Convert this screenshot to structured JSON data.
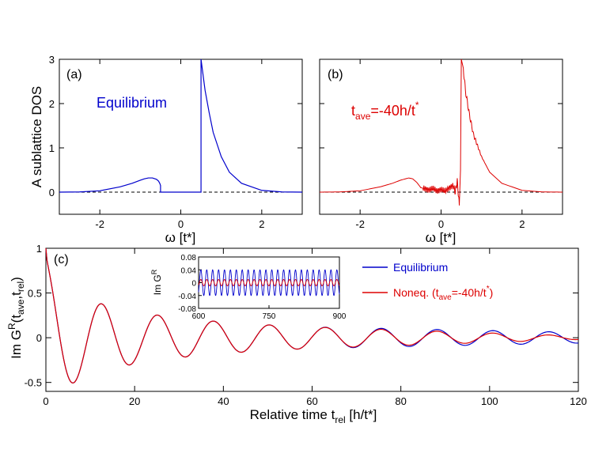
{
  "chart_data": [
    {
      "id": "a",
      "type": "line",
      "panel_label": "(a)",
      "ylabel": "A sublattice DOS",
      "xlabel": "ω [t*]",
      "xlim": [
        -3,
        3
      ],
      "ylim": [
        -0.5,
        3
      ],
      "xticks": [
        -2,
        0,
        2
      ],
      "yticks": [
        0,
        1,
        2,
        3
      ],
      "annotation": "Equilibrium",
      "series": [
        {
          "color": "#0000cc",
          "x": [
            -3.0,
            -2.5,
            -2.0,
            -1.5,
            -1.2,
            -1.0,
            -0.9,
            -0.8,
            -0.7,
            -0.6,
            -0.55,
            -0.52,
            -0.5,
            -0.5,
            0.5,
            0.5,
            0.6,
            0.7,
            0.8,
            1.0,
            1.2,
            1.5,
            2.0,
            2.5,
            3.0
          ],
          "y": [
            0.0,
            0.005,
            0.03,
            0.12,
            0.2,
            0.27,
            0.3,
            0.32,
            0.32,
            0.29,
            0.25,
            0.2,
            0.15,
            0.0,
            0.0,
            3.0,
            2.3,
            1.8,
            1.35,
            0.8,
            0.45,
            0.2,
            0.04,
            0.005,
            0.0
          ]
        }
      ],
      "dashed_zero_line": true
    },
    {
      "id": "b",
      "type": "line",
      "panel_label": "(b)",
      "xlabel": "ω [t*]",
      "xlim": [
        -3,
        3
      ],
      "ylim": [
        -0.5,
        3
      ],
      "xticks": [
        -2,
        0,
        2
      ],
      "yticks": [
        0,
        1,
        2,
        3
      ],
      "annotation_main": "t",
      "annotation_sub": "ave",
      "annotation_rest": "=-40h/t",
      "annotation_sup": "*",
      "series": [
        {
          "color": "#dd0000",
          "x": [
            -3.0,
            -2.5,
            -2.0,
            -1.5,
            -1.2,
            -1.0,
            -0.8,
            -0.7,
            -0.6,
            -0.5,
            -0.4,
            -0.3,
            -0.2,
            -0.1,
            0.0,
            0.1,
            0.2,
            0.3,
            0.35,
            0.4,
            0.45,
            0.48,
            0.5,
            0.55,
            0.6,
            0.7,
            0.8,
            1.0,
            1.2,
            1.5,
            2.0,
            2.5,
            3.0
          ],
          "y": [
            0.0,
            0.005,
            0.03,
            0.12,
            0.2,
            0.27,
            0.32,
            0.3,
            0.22,
            0.1,
            0.08,
            0.05,
            0.08,
            0.03,
            0.06,
            0.02,
            0.1,
            0.15,
            0.0,
            0.25,
            -0.3,
            0.5,
            3.0,
            2.8,
            2.3,
            1.75,
            1.3,
            0.8,
            0.45,
            0.2,
            0.04,
            0.005,
            0.0
          ]
        }
      ],
      "dashed_zero_line": true
    },
    {
      "id": "c",
      "type": "line",
      "panel_label": "(c)",
      "ylabel_main": "Im G",
      "ylabel_sup": "R",
      "ylabel_args": "(t",
      "ylabel_sub1": "ave",
      "ylabel_mid": ",t",
      "ylabel_sub2": "rel",
      "ylabel_end": ")",
      "xlabel_main": "Relative time t",
      "xlabel_sub": "rel",
      "xlabel_end": " [h/t*]",
      "xlim": [
        0,
        120
      ],
      "ylim": [
        -0.6,
        1
      ],
      "xticks": [
        0,
        20,
        40,
        60,
        80,
        100,
        120
      ],
      "yticks": [
        -0.5,
        0,
        0.5,
        1
      ],
      "ytick_labels": [
        "-0.5",
        "0",
        "0.5",
        "1"
      ],
      "legend_position": "top-right",
      "legend": [
        {
          "label": "Equilibrium",
          "color": "#0000cc"
        },
        {
          "label_main": "Noneq. (t",
          "label_sub": "ave",
          "label_rest": "=-40h/t",
          "label_sup": "*",
          "label_end": ")",
          "color": "#dd0000"
        }
      ],
      "series": [
        {
          "name": "Equilibrium",
          "color": "#0000cc",
          "period": 12.6,
          "amplitude_start": 1.0,
          "amplitude_at_60": 0.12,
          "amplitude_end": 0.06
        },
        {
          "name": "Noneq.",
          "color": "#dd0000",
          "period": 12.6,
          "amplitude_start": 1.0,
          "amplitude_at_60": 0.12,
          "amplitude_end": 0.02
        }
      ],
      "inset": {
        "ylabel_main": "Im G",
        "ylabel_sup": "R",
        "xlim": [
          600,
          900
        ],
        "ylim": [
          -0.08,
          0.08
        ],
        "xticks": [
          600,
          750,
          900
        ],
        "yticks": [
          0.08,
          0.04,
          0,
          -0.04,
          -0.08
        ],
        "ytick_labels": [
          "0.08",
          "0.04",
          "0",
          "-0.04",
          "-0.08"
        ],
        "equilibrium_amplitude": 0.04,
        "noneq_amplitude": 0.01
      }
    }
  ]
}
